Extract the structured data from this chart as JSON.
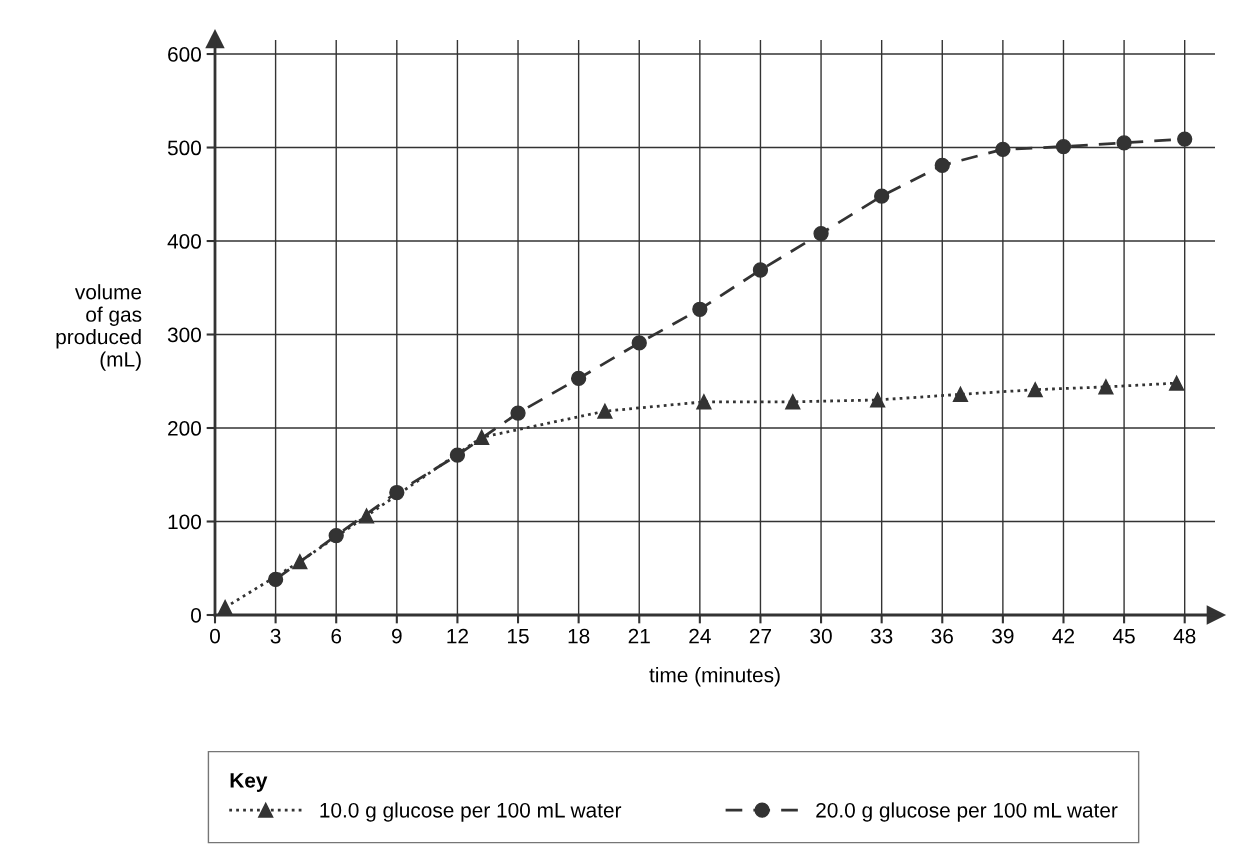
{
  "chart_data": {
    "type": "line",
    "xlabel": "time (minutes)",
    "ylabel": "volume\nof gas\nproduced\n(mL)",
    "legend_title": "Key",
    "legend": "bottom",
    "grid": true,
    "xlim": [
      0,
      49.5
    ],
    "ylim": [
      0,
      615
    ],
    "xticks": [
      0,
      3,
      6,
      9,
      12,
      15,
      18,
      21,
      24,
      27,
      30,
      33,
      36,
      39,
      42,
      45,
      48
    ],
    "yticks": [
      0,
      100,
      200,
      300,
      400,
      500,
      600
    ],
    "series": [
      {
        "name": "10.0 g glucose per 100 mL water",
        "color": "#333333",
        "marker": "triangle",
        "line_style": "dotted",
        "x": [
          0.5,
          4.2,
          7.5,
          13.2,
          19.3,
          24.2,
          28.6,
          32.8,
          36.9,
          40.6,
          44.1,
          47.6
        ],
        "values": [
          8,
          57,
          106,
          190,
          218,
          228,
          228,
          230,
          236,
          241,
          244,
          248
        ]
      },
      {
        "name": "20.0 g glucose per 100 mL water",
        "color": "#333333",
        "marker": "circle",
        "line_style": "dashed",
        "x": [
          3,
          6,
          9,
          12,
          15,
          18,
          21,
          24,
          27,
          30,
          33,
          36,
          39,
          42,
          45,
          48
        ],
        "values": [
          38,
          85,
          131,
          171,
          216,
          253,
          291,
          327,
          369,
          408,
          448,
          481,
          498,
          501,
          505,
          509
        ]
      }
    ]
  }
}
